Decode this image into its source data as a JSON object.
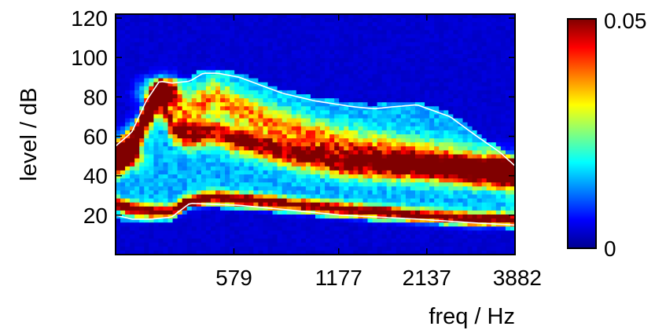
{
  "chart_data": {
    "type": "heatmap",
    "title": "",
    "xlabel": "freq / Hz",
    "ylabel": "level / dB",
    "x_scale": "log",
    "x_tick_labels": [
      "579",
      "1177",
      "2137",
      "3882"
    ],
    "x_ticks_hz": [
      579,
      1177,
      2137,
      3882
    ],
    "xlim_hz": [
      260,
      3882
    ],
    "y_ticks": [
      20,
      40,
      60,
      80,
      100,
      120
    ],
    "ylim": [
      0,
      122
    ],
    "colorbar": {
      "range": [
        0,
        0.05
      ],
      "tick_labels": [
        "0",
        "0.05"
      ],
      "colormap": "jet"
    },
    "ridges": [
      {
        "freq_hz": [
          260,
          290,
          330,
          380,
          430,
          500,
          600,
          800,
          1200,
          2000,
          3000,
          3882
        ],
        "level_db": [
          26,
          23,
          22,
          22,
          27,
          29,
          28,
          26,
          23,
          20,
          18,
          18
        ],
        "weight": 0.85,
        "width_db": 2.2
      },
      {
        "freq_hz": [
          260,
          290,
          320,
          350,
          380,
          420,
          500,
          600,
          800,
          1200,
          2000,
          3000,
          3500,
          3882
        ],
        "level_db": [
          47,
          55,
          70,
          83,
          64,
          60,
          62,
          58,
          52,
          46,
          44,
          42,
          42,
          42
        ],
        "weight": 0.7,
        "width_db": 4.5
      },
      {
        "freq_hz": [
          260,
          300,
          340,
          380,
          420,
          500,
          600,
          800,
          1200,
          2000,
          3000,
          3882
        ],
        "level_db": [
          50,
          60,
          75,
          80,
          72,
          80,
          74,
          65,
          56,
          50,
          45,
          40
        ],
        "weight": 0.45,
        "width_db": 6
      }
    ],
    "hotspots": [
      {
        "freq_hz": 270,
        "level_db": 50,
        "value": 0.05
      },
      {
        "freq_hz": 350,
        "level_db": 83,
        "value": 0.045
      },
      {
        "freq_hz": 3700,
        "level_db": 42,
        "value": 0.05
      }
    ],
    "overlay_lines": [
      {
        "name": "upper",
        "freq_hz": [
          260,
          290,
          320,
          350,
          380,
          430,
          470,
          520,
          600,
          800,
          1000,
          1300,
          1500,
          1700,
          2000,
          2500,
          3000,
          3500,
          3882
        ],
        "level_db": [
          55,
          62,
          78,
          88,
          87,
          88,
          92,
          92,
          90,
          82,
          78,
          75,
          74,
          75,
          76,
          70,
          60,
          52,
          45
        ]
      },
      {
        "name": "lower",
        "freq_hz": [
          260,
          290,
          330,
          380,
          400,
          430,
          600,
          800,
          1200,
          2000,
          3000,
          3882
        ],
        "level_db": [
          20,
          18,
          18,
          19,
          22,
          26,
          25,
          23,
          20,
          18,
          16,
          15
        ]
      }
    ],
    "colors": {
      "overlay_line": "#ffffff",
      "background_low": "#00008f"
    }
  }
}
